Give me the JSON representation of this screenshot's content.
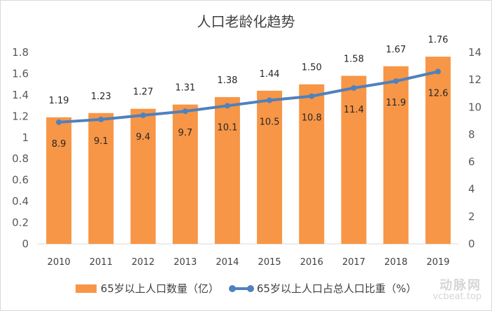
{
  "chart_data": {
    "type": "bar+line",
    "title": "人口老龄化趋势",
    "categories": [
      "2010",
      "2011",
      "2012",
      "2013",
      "2014",
      "2015",
      "2016",
      "2017",
      "2018",
      "2019"
    ],
    "series": [
      {
        "name": "65岁以上人口数量（亿）",
        "type": "bar",
        "axis": "left",
        "color": "#f79646",
        "values": [
          1.19,
          1.23,
          1.27,
          1.31,
          1.38,
          1.44,
          1.5,
          1.58,
          1.67,
          1.76
        ],
        "labels": [
          "1.19",
          "1.23",
          "1.27",
          "1.31",
          "1.38",
          "1.44",
          "1.50",
          "1.58",
          "1.67",
          "1.76"
        ]
      },
      {
        "name": "65岁以上人口占总人口比重（%）",
        "type": "line",
        "axis": "right",
        "color": "#4f81bd",
        "values": [
          8.9,
          9.1,
          9.4,
          9.7,
          10.1,
          10.5,
          10.8,
          11.4,
          11.9,
          12.6
        ],
        "labels": [
          "8.9",
          "9.1",
          "9.4",
          "9.7",
          "10.1",
          "10.5",
          "10.8",
          "11.4",
          "11.9",
          "12.6"
        ]
      }
    ],
    "left_axis": {
      "ylim": [
        0,
        1.8
      ],
      "ticks": [
        "0",
        "0.2",
        "0.4",
        "0.6",
        "0.8",
        "1",
        "1.2",
        "1.4",
        "1.6",
        "1.8"
      ]
    },
    "right_axis": {
      "ylim": [
        0,
        14
      ],
      "ticks": [
        "0",
        "2",
        "4",
        "6",
        "8",
        "10",
        "12",
        "14"
      ]
    },
    "grid": false,
    "legend": "bottom"
  },
  "watermark": {
    "line1": "动脉网",
    "line2": "vcbeat.top"
  }
}
